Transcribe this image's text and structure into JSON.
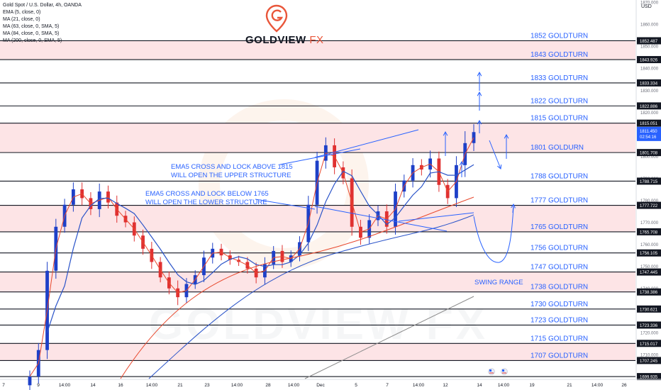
{
  "legend": {
    "symbol": "Gold Spot / U.S. Dollar, 4h, OANDA",
    "studies": [
      "EMA (5, close, 0)",
      "MA (21, close, 0)",
      "MA (63, close, 0, SMA, 5)",
      "MA (84, close, 0, SMA, 5)",
      "MA (200, close, 0, SMA, 5)"
    ]
  },
  "logo": {
    "text": "GOLDVIEW",
    "suffix": "FX",
    "watermark": "GOLDVIEW FX"
  },
  "axis": {
    "currency": "USD"
  },
  "annotations": {
    "upper": [
      "EMA5 CROSS AND LOCK ABOVE 1815",
      "WILL OPEN THE UPPER STRUCTURE"
    ],
    "lower": [
      "EMA5 CROSS AND LOCK BELOW 1765",
      "WILL OPEN THE LOWER STRUCTURE"
    ],
    "swing": "SWING RANGE"
  },
  "colors": {
    "level_line": "#131722",
    "level_text": "#2962ff",
    "zone_fill": "#fde4e6",
    "zone_border": "#f5b7bd",
    "up_candle": "#1e40c8",
    "down_candle": "#e03131",
    "ma_blue": "#2b54c9",
    "ma_red": "#e8492e",
    "ma_grey": "#8b8b8b",
    "arrow": "#2962ff",
    "price_tag": "#2962ff"
  },
  "chart_data": {
    "type": "candlestick",
    "instrument": "XAUUSD",
    "timeframe": "4h",
    "ylim": [
      1699,
      1871
    ],
    "x_ticks": [
      "7",
      "9",
      "14:00",
      "14",
      "16",
      "14:00",
      "21",
      "23",
      "14:00",
      "28",
      "14:00",
      "Dec",
      "5",
      "7",
      "14:00",
      "12",
      "14",
      "14:00",
      "19",
      "21",
      "14:00",
      "26"
    ],
    "y_ticks": [
      1870,
      1860,
      1850,
      1840,
      1830,
      1820,
      1810,
      1800,
      1790,
      1780,
      1770,
      1760,
      1750,
      1740,
      1730,
      1720,
      1710,
      1700
    ],
    "levels": [
      {
        "label": "1852 GOLDTURN",
        "price": 1852.487,
        "tag": "1852.487"
      },
      {
        "label": "1843 GOLDTURN",
        "price": 1843.926,
        "tag": "1843.926"
      },
      {
        "label": "1833 GOLDTURN",
        "price": 1833.334,
        "tag": "1833.334"
      },
      {
        "label": "1822 GOLDTURN",
        "price": 1822.886,
        "tag": "1822.886"
      },
      {
        "label": "1815 GOLDTURN",
        "price": 1815.051,
        "tag": "1815.051"
      },
      {
        "label": "1801 GOLDURN",
        "price": 1801.708,
        "tag": "1801.708"
      },
      {
        "label": "1788 GOLDTURN",
        "price": 1788.715,
        "tag": "1788.715"
      },
      {
        "label": "1777 GOLDTURN",
        "price": 1777.722,
        "tag": "1777.722"
      },
      {
        "label": "1765 GOLDTURN",
        "price": 1765.708,
        "tag": "1765.708"
      },
      {
        "label": "1756 GOLDTURN",
        "price": 1756.105,
        "tag": "1756.105"
      },
      {
        "label": "1747 GOLDTURN",
        "price": 1747.445,
        "tag": "1747.445"
      },
      {
        "label": "1738 GOLDTURN",
        "price": 1738.386,
        "tag": "1738.386"
      },
      {
        "label": "1730 GOLDTURN",
        "price": 1730.621,
        "tag": "1730.621"
      },
      {
        "label": "1723 GOLDTURN",
        "price": 1723.336,
        "tag": "1723.336"
      },
      {
        "label": "1715 GOLDTURN",
        "price": 1715.017,
        "tag": "1715.017"
      },
      {
        "label": "1707 GOLDTURN",
        "price": 1707.245,
        "tag": "1707.245"
      },
      {
        "label": "",
        "price": 1699.935,
        "tag": "1699.935"
      }
    ],
    "zones": [
      [
        1843.926,
        1852.487
      ],
      [
        1801.708,
        1815.051
      ],
      [
        1765.708,
        1777.722
      ],
      [
        1738.386,
        1747.445
      ],
      [
        1707.245,
        1715.017
      ]
    ],
    "current_price": {
      "price": 1811.45,
      "tag": "1811.450",
      "countdown": "02:54:16"
    },
    "closes": [
      1700,
      1712,
      1748,
      1768,
      1778,
      1785,
      1781,
      1776,
      1784,
      1779,
      1773,
      1770,
      1764,
      1758,
      1752,
      1745,
      1740,
      1736,
      1742,
      1746,
      1754,
      1758,
      1755,
      1753,
      1752,
      1749,
      1745,
      1751,
      1757,
      1752,
      1755,
      1761,
      1778,
      1798,
      1805,
      1795,
      1790,
      1768,
      1763,
      1771,
      1775,
      1768,
      1784,
      1789,
      1796,
      1794,
      1799,
      1787,
      1781,
      1796,
      1806,
      1811
    ]
  }
}
